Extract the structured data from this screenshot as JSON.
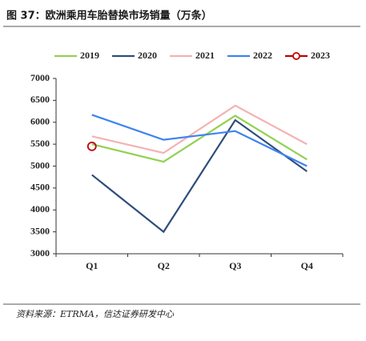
{
  "chart_data": {
    "type": "line",
    "title": "图 37：欧洲乘用车胎替换市场销量（万条）",
    "source": "资料来源：ETRMA，信达证券研发中心",
    "categories": [
      "Q1",
      "Q2",
      "Q3",
      "Q4"
    ],
    "series": [
      {
        "name": "2019",
        "color": "#92d050",
        "values": [
          5500,
          5100,
          6150,
          5150
        ]
      },
      {
        "name": "2020",
        "color": "#2f4d7a",
        "values": [
          4800,
          3500,
          6050,
          4880
        ]
      },
      {
        "name": "2021",
        "color": "#f4b2b2",
        "values": [
          5680,
          5300,
          6380,
          5500
        ]
      },
      {
        "name": "2022",
        "color": "#3d83f0",
        "values": [
          6170,
          5600,
          5800,
          5000
        ]
      },
      {
        "name": "2023",
        "color": "#c00000",
        "values": [
          5450,
          null,
          null,
          null
        ],
        "marker": true
      }
    ],
    "ylim": [
      3000,
      7000
    ],
    "yticks": [
      3000,
      3500,
      4000,
      4500,
      5000,
      5500,
      6000,
      6500,
      7000
    ],
    "legend": "top"
  }
}
